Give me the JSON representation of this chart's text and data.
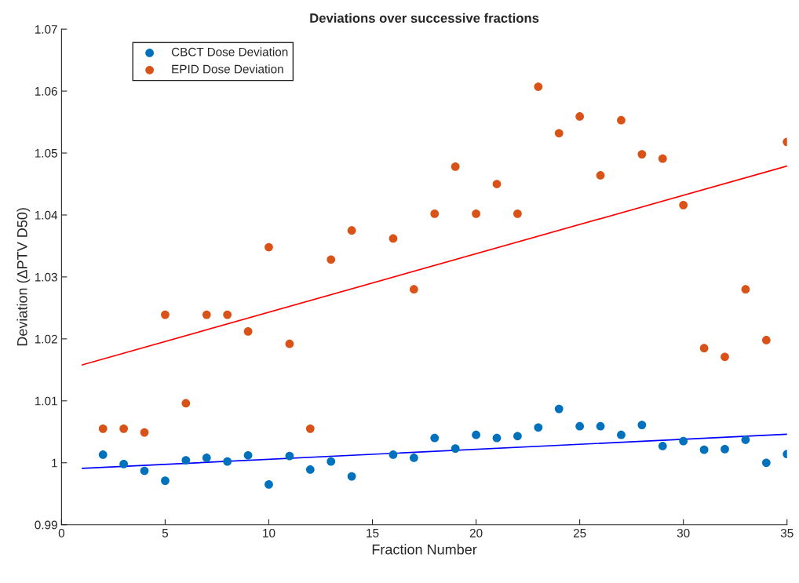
{
  "chart_data": {
    "type": "scatter",
    "title": "Deviations over successive fractions",
    "xlabel": "Fraction Number",
    "ylabel": "Deviation (ΔPTV D50)",
    "xlim": [
      0,
      35
    ],
    "xticks": [
      0,
      5,
      10,
      15,
      20,
      25,
      30,
      35
    ],
    "ylim": [
      0.99,
      1.07
    ],
    "yticks": [
      0.99,
      1,
      1.01,
      1.02,
      1.03,
      1.04,
      1.05,
      1.06,
      1.07
    ],
    "grid": false,
    "legend": "top left",
    "series": [
      {
        "name": "CBCT Dose Deviation",
        "marker": "circle",
        "color": "#0072bd",
        "x": [
          2,
          3,
          4,
          5,
          6,
          7,
          8,
          9,
          10,
          11,
          12,
          13,
          14,
          16,
          17,
          18,
          19,
          20,
          21,
          22,
          23,
          24,
          25,
          26,
          27,
          28,
          29,
          30,
          31,
          32,
          33,
          34,
          35
        ],
        "values": [
          1.0013,
          0.9998,
          0.9987,
          0.9971,
          1.0004,
          1.0008,
          1.0002,
          1.0012,
          0.9965,
          1.0011,
          0.9989,
          1.0002,
          0.9978,
          1.0013,
          1.0008,
          1.004,
          1.0023,
          1.0045,
          1.004,
          1.0043,
          1.0057,
          1.0087,
          1.0059,
          1.0059,
          1.0045,
          1.0061,
          1.0027,
          1.0035,
          1.0021,
          1.0022,
          1.0037,
          1.0,
          1.0014
        ]
      },
      {
        "name": "EPID Dose Deviation",
        "marker": "circle",
        "color": "#d95319",
        "x": [
          2,
          3,
          4,
          5,
          6,
          7,
          8,
          9,
          10,
          11,
          12,
          13,
          14,
          16,
          17,
          18,
          19,
          20,
          21,
          22,
          23,
          24,
          25,
          26,
          27,
          28,
          29,
          30,
          31,
          32,
          33,
          34,
          35
        ],
        "values": [
          1.0055,
          1.0055,
          1.0049,
          1.0239,
          1.0096,
          1.0239,
          1.0239,
          1.0212,
          1.0348,
          1.0192,
          1.0055,
          1.0328,
          1.0375,
          1.0362,
          1.028,
          1.0402,
          1.0478,
          1.0402,
          1.045,
          1.0402,
          1.0607,
          1.0532,
          1.0559,
          1.0464,
          1.0553,
          1.0498,
          1.0491,
          1.0416,
          1.0185,
          1.0171,
          1.028,
          1.0198,
          1.0518
        ]
      },
      {
        "type": "line",
        "color": "#0000ff",
        "x": [
          1,
          35
        ],
        "values": [
          0.9991,
          1.0046
        ]
      },
      {
        "type": "line",
        "color": "#ff0000",
        "x": [
          1,
          35
        ],
        "values": [
          1.0158,
          1.0479
        ]
      }
    ]
  }
}
